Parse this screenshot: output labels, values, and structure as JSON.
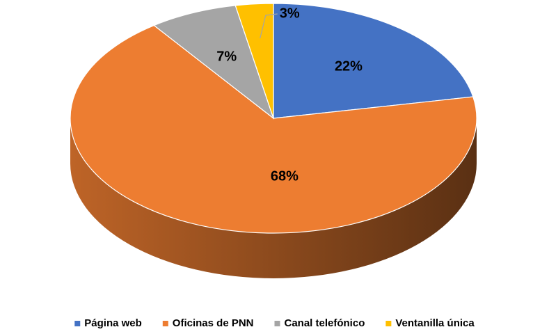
{
  "chart_data": {
    "type": "pie3d",
    "categories": [
      "Página web",
      "Oficinas de PNN",
      "Canal telefónico",
      "Ventanilla única"
    ],
    "values": [
      22,
      68,
      7,
      3
    ],
    "value_labels": [
      "22%",
      "68%",
      "7%",
      "3%"
    ],
    "colors": [
      "#4472c4",
      "#ed7d31",
      "#a5a5a5",
      "#ffc000"
    ],
    "legend": "bottom"
  }
}
